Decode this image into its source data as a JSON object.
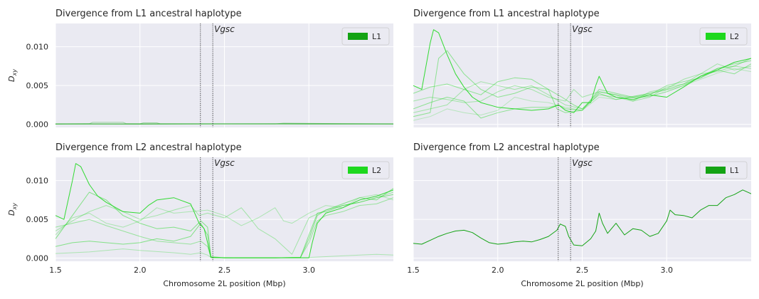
{
  "figure": {
    "xlabel": "Chromosome 2L position (Mbp)",
    "ylabel_main": "D",
    "ylabel_sub": "xy",
    "annotation": "Vgsc",
    "gene_region": [
      2.358,
      2.431
    ]
  },
  "chart_data": [
    {
      "type": "line",
      "title": "Divergence from L1 ancestral haplotype",
      "legend": {
        "label": "L1",
        "color": "#14a314",
        "position": "top-right"
      },
      "show_ylabel": true,
      "show_yticks": true,
      "show_xticks": false,
      "xlim": [
        1.5,
        3.5
      ],
      "ylim": [
        -0.0004,
        0.013
      ],
      "xticks": [
        1.5,
        2.0,
        2.5,
        3.0
      ],
      "xticklabels": [
        "1.5",
        "2.0",
        "2.5",
        "3.0"
      ],
      "yticks": [
        0.0,
        0.005,
        0.01
      ],
      "yticklabels": [
        "0.000",
        "0.005",
        "0.010"
      ],
      "series": [
        {
          "alpha": 0.35,
          "x": [
            1.5,
            1.7,
            1.72,
            1.9,
            1.92,
            2.5,
            3.0,
            3.5
          ],
          "y": [
            5e-05,
            8e-05,
            0.00025,
            0.00025,
            8e-05,
            6e-05,
            8e-05,
            6e-05
          ]
        },
        {
          "alpha": 0.35,
          "x": [
            1.5,
            2.0,
            2.02,
            2.1,
            2.12,
            2.8,
            2.85,
            3.2,
            3.5
          ],
          "y": [
            4e-05,
            6e-05,
            0.0002,
            0.0002,
            6e-05,
            5e-05,
            0.00015,
            8e-05,
            5e-05
          ]
        },
        {
          "alpha": 0.9,
          "x": [
            1.5,
            2.0,
            2.5,
            3.0,
            3.5
          ],
          "y": [
            5e-05,
            4e-05,
            6e-05,
            5e-05,
            5e-05
          ]
        }
      ]
    },
    {
      "type": "line",
      "title": "Divergence from L1 ancestral haplotype",
      "legend": {
        "label": "L2",
        "color": "#1ed81e",
        "position": "top-right"
      },
      "show_ylabel": false,
      "show_yticks": false,
      "show_xticks": false,
      "xlim": [
        1.5,
        3.5
      ],
      "ylim": [
        -0.0004,
        0.013
      ],
      "xticks": [
        1.5,
        2.0,
        2.5,
        3.0
      ],
      "xticklabels": [
        "1.5",
        "2.0",
        "2.5",
        "3.0"
      ],
      "yticks": [
        0.0,
        0.005,
        0.01
      ],
      "yticklabels": [
        "0.000",
        "0.005",
        "0.010"
      ],
      "series": [
        {
          "alpha": 0.9,
          "x": [
            1.5,
            1.55,
            1.6,
            1.62,
            1.65,
            1.7,
            1.75,
            1.8,
            1.85,
            1.9,
            2.0,
            2.1,
            2.2,
            2.3,
            2.36,
            2.4,
            2.45,
            2.5,
            2.55,
            2.58,
            2.6,
            2.65,
            2.7,
            2.8,
            2.9,
            3.0,
            3.1,
            3.2,
            3.3,
            3.4,
            3.5
          ],
          "y": [
            0.005,
            0.0045,
            0.0105,
            0.0122,
            0.0118,
            0.009,
            0.0065,
            0.0048,
            0.0035,
            0.0028,
            0.0022,
            0.002,
            0.0018,
            0.002,
            0.0025,
            0.0018,
            0.0015,
            0.0028,
            0.0028,
            0.005,
            0.0062,
            0.004,
            0.0035,
            0.0032,
            0.0038,
            0.0035,
            0.0048,
            0.0062,
            0.007,
            0.008,
            0.0085
          ]
        },
        {
          "alpha": 0.45,
          "x": [
            1.5,
            1.6,
            1.7,
            1.8,
            1.9,
            2.0,
            2.1,
            2.2,
            2.3,
            2.35,
            2.4,
            2.5,
            2.6,
            2.7,
            2.8,
            2.9,
            3.0,
            3.1,
            3.2,
            3.3,
            3.4,
            3.5
          ],
          "y": [
            0.004,
            0.0048,
            0.0052,
            0.0045,
            0.0038,
            0.0055,
            0.006,
            0.0058,
            0.0045,
            0.002,
            0.0015,
            0.0018,
            0.004,
            0.0032,
            0.0036,
            0.004,
            0.0045,
            0.0052,
            0.006,
            0.0072,
            0.0075,
            0.0085
          ]
        },
        {
          "alpha": 0.45,
          "x": [
            1.5,
            1.6,
            1.7,
            1.8,
            1.9,
            2.0,
            2.1,
            2.2,
            2.3,
            2.36,
            2.4,
            2.5,
            2.6,
            2.7,
            2.8,
            2.9,
            3.0,
            3.1,
            3.2,
            3.3,
            3.4,
            3.5
          ],
          "y": [
            0.002,
            0.0028,
            0.0035,
            0.003,
            0.0008,
            0.0015,
            0.002,
            0.0022,
            0.0022,
            0.0025,
            0.002,
            0.0018,
            0.0045,
            0.004,
            0.0035,
            0.0038,
            0.005,
            0.0055,
            0.006,
            0.007,
            0.0065,
            0.0078
          ]
        },
        {
          "alpha": 0.45,
          "x": [
            1.5,
            1.6,
            1.65,
            1.7,
            1.8,
            1.9,
            2.0,
            2.1,
            2.2,
            2.3,
            2.38,
            2.45,
            2.5,
            2.6,
            2.7,
            2.8,
            2.9,
            3.0,
            3.1,
            3.2,
            3.3,
            3.4,
            3.5
          ],
          "y": [
            0.001,
            0.0015,
            0.0085,
            0.0095,
            0.0065,
            0.0045,
            0.0035,
            0.004,
            0.0048,
            0.0045,
            0.0035,
            0.0025,
            0.002,
            0.0042,
            0.0038,
            0.0034,
            0.0036,
            0.0042,
            0.005,
            0.0062,
            0.0072,
            0.0078,
            0.0082
          ]
        },
        {
          "alpha": 0.35,
          "x": [
            1.5,
            1.6,
            1.7,
            1.8,
            1.9,
            2.0,
            2.1,
            2.2,
            2.3,
            2.4,
            2.5,
            2.6,
            2.7,
            2.8,
            2.9,
            3.0,
            3.1,
            3.2,
            3.3,
            3.4,
            3.5
          ],
          "y": [
            0.0015,
            0.002,
            0.0025,
            0.0045,
            0.0055,
            0.005,
            0.0045,
            0.005,
            0.0038,
            0.0025,
            0.002,
            0.0038,
            0.0035,
            0.003,
            0.0035,
            0.0048,
            0.0052,
            0.0065,
            0.0068,
            0.0075,
            0.0072
          ]
        },
        {
          "alpha": 0.35,
          "x": [
            1.5,
            1.6,
            1.7,
            1.8,
            1.9,
            2.0,
            2.1,
            2.2,
            2.3,
            2.4,
            2.45,
            2.5,
            2.6,
            2.7,
            2.8,
            2.9,
            3.0,
            3.1,
            3.2,
            3.3,
            3.4,
            3.5
          ],
          "y": [
            0.003,
            0.0035,
            0.0032,
            0.0028,
            0.003,
            0.0042,
            0.005,
            0.0045,
            0.0035,
            0.003,
            0.0045,
            0.0035,
            0.0042,
            0.0038,
            0.003,
            0.0042,
            0.0046,
            0.0058,
            0.0065,
            0.0078,
            0.007,
            0.0075
          ]
        },
        {
          "alpha": 0.25,
          "x": [
            1.5,
            1.6,
            1.7,
            1.8,
            1.9,
            2.0,
            2.1,
            2.2,
            2.3,
            2.4,
            2.5,
            2.6,
            2.7,
            2.8,
            2.9,
            3.0,
            3.1,
            3.2,
            3.3,
            3.4,
            3.5
          ],
          "y": [
            0.0005,
            0.001,
            0.002,
            0.0015,
            0.0012,
            0.0018,
            0.0035,
            0.003,
            0.0028,
            0.0022,
            0.0018,
            0.0035,
            0.0032,
            0.0035,
            0.004,
            0.0044,
            0.005,
            0.0058,
            0.0066,
            0.0072,
            0.0068
          ]
        }
      ]
    },
    {
      "type": "line",
      "title": "Divergence from L2 ancestral haplotype",
      "legend": {
        "label": "L2",
        "color": "#1ed81e",
        "position": "top-right"
      },
      "show_ylabel": true,
      "show_yticks": true,
      "show_xticks": true,
      "xlim": [
        1.5,
        3.5
      ],
      "ylim": [
        -0.0004,
        0.013
      ],
      "xticks": [
        1.5,
        2.0,
        2.5,
        3.0
      ],
      "xticklabels": [
        "1.5",
        "2.0",
        "2.5",
        "3.0"
      ],
      "yticks": [
        0.0,
        0.005,
        0.01
      ],
      "yticklabels": [
        "0.000",
        "0.005",
        "0.010"
      ],
      "series": [
        {
          "alpha": 0.9,
          "x": [
            1.5,
            1.55,
            1.6,
            1.62,
            1.65,
            1.7,
            1.75,
            1.8,
            1.9,
            2.0,
            2.05,
            2.1,
            2.2,
            2.3,
            2.35,
            2.38,
            2.4,
            2.42,
            2.5,
            2.8,
            3.0,
            3.02,
            3.05,
            3.1,
            3.2,
            3.3,
            3.4,
            3.5
          ],
          "y": [
            0.0055,
            0.005,
            0.01,
            0.0122,
            0.0118,
            0.0095,
            0.008,
            0.0072,
            0.006,
            0.0058,
            0.0068,
            0.0075,
            0.0078,
            0.007,
            0.0045,
            0.0038,
            0.002,
            0.0001,
            5e-05,
            5e-05,
            5e-05,
            0.002,
            0.0045,
            0.0058,
            0.0065,
            0.0075,
            0.008,
            0.0088
          ]
        },
        {
          "alpha": 0.5,
          "x": [
            1.5,
            1.6,
            1.7,
            1.8,
            1.9,
            2.0,
            2.1,
            2.2,
            2.3,
            2.36,
            2.4,
            2.42,
            2.5,
            2.8,
            2.95,
            3.0,
            3.05,
            3.1,
            3.2,
            3.3,
            3.4,
            3.5
          ],
          "y": [
            0.0025,
            0.0055,
            0.0085,
            0.0075,
            0.0055,
            0.0045,
            0.0038,
            0.004,
            0.0035,
            0.0048,
            0.004,
            0.0002,
            5e-05,
            5e-05,
            0.0001,
            0.003,
            0.0058,
            0.006,
            0.0068,
            0.0072,
            0.0078,
            0.0082
          ]
        },
        {
          "alpha": 0.5,
          "x": [
            1.5,
            1.6,
            1.7,
            1.8,
            1.9,
            2.0,
            2.1,
            2.2,
            2.3,
            2.36,
            2.4,
            2.42,
            2.5,
            2.8,
            2.95,
            3.0,
            3.05,
            3.1,
            3.2,
            3.3,
            3.4,
            3.5
          ],
          "y": [
            0.0015,
            0.002,
            0.0022,
            0.002,
            0.0018,
            0.002,
            0.0025,
            0.0022,
            0.0028,
            0.0045,
            0.003,
            0.0001,
            5e-05,
            5e-05,
            0.0001,
            0.0025,
            0.0055,
            0.0062,
            0.007,
            0.0078,
            0.0075,
            0.009
          ]
        },
        {
          "alpha": 0.4,
          "x": [
            1.5,
            1.6,
            1.7,
            1.8,
            1.9,
            2.0,
            2.1,
            2.2,
            2.3,
            2.36,
            2.4,
            2.42,
            2.5,
            2.8,
            2.95,
            3.0,
            3.05,
            3.1,
            3.2,
            3.3,
            3.4,
            3.5
          ],
          "y": [
            0.004,
            0.0045,
            0.005,
            0.0042,
            0.0035,
            0.0028,
            0.0022,
            0.002,
            0.0018,
            0.0022,
            0.0015,
            0.0001,
            5e-05,
            5e-05,
            0.0001,
            0.002,
            0.0048,
            0.0055,
            0.006,
            0.0068,
            0.007,
            0.0078
          ]
        },
        {
          "alpha": 0.35,
          "x": [
            1.5,
            1.6,
            1.7,
            1.8,
            1.9,
            2.0,
            2.1,
            2.2,
            2.3,
            2.35,
            2.4,
            2.5,
            2.6,
            2.65,
            2.7,
            2.8,
            2.9,
            3.0,
            3.1,
            3.2,
            3.3,
            3.4,
            3.5
          ],
          "y": [
            0.0035,
            0.0048,
            0.006,
            0.0068,
            0.006,
            0.005,
            0.0055,
            0.0062,
            0.0068,
            0.0055,
            0.0058,
            0.0052,
            0.0065,
            0.0052,
            0.0038,
            0.0025,
            0.0005,
            0.0052,
            0.0062,
            0.0068,
            0.0072,
            0.0078,
            0.0085
          ]
        },
        {
          "alpha": 0.3,
          "x": [
            1.5,
            1.6,
            1.7,
            1.8,
            1.9,
            2.0,
            2.1,
            2.2,
            2.3,
            2.4,
            2.5,
            2.6,
            2.7,
            2.8,
            2.85,
            2.9,
            3.0,
            3.1,
            3.2,
            3.3,
            3.4,
            3.5
          ],
          "y": [
            0.003,
            0.0052,
            0.0058,
            0.0045,
            0.004,
            0.0048,
            0.0065,
            0.0058,
            0.006,
            0.0062,
            0.0055,
            0.0042,
            0.0052,
            0.0065,
            0.0048,
            0.0045,
            0.0058,
            0.0068,
            0.0065,
            0.0078,
            0.0082,
            0.0075
          ]
        },
        {
          "alpha": 0.3,
          "x": [
            1.5,
            1.7,
            1.9,
            2.0,
            2.2,
            2.3,
            2.36,
            2.4,
            2.42,
            2.6,
            2.8,
            3.0,
            3.2,
            3.4,
            3.5
          ],
          "y": [
            0.0006,
            0.0008,
            0.0012,
            0.001,
            0.0007,
            0.0005,
            0.0007,
            0.0004,
            0.0001,
            5e-05,
            5e-05,
            0.0001,
            0.0003,
            0.0005,
            0.0004
          ]
        }
      ]
    },
    {
      "type": "line",
      "title": "Divergence from L2 ancestral haplotype",
      "legend": {
        "label": "L1",
        "color": "#14a314",
        "position": "top-right"
      },
      "show_ylabel": false,
      "show_yticks": false,
      "show_xticks": true,
      "xlim": [
        1.5,
        3.5
      ],
      "ylim": [
        -0.0004,
        0.013
      ],
      "xticks": [
        1.5,
        2.0,
        2.5,
        3.0
      ],
      "xticklabels": [
        "1.5",
        "2.0",
        "2.5",
        "3.0"
      ],
      "yticks": [
        0.0,
        0.005,
        0.01
      ],
      "yticklabels": [
        "0.000",
        "0.005",
        "0.010"
      ],
      "series": [
        {
          "alpha": 1.0,
          "x": [
            1.5,
            1.55,
            1.6,
            1.65,
            1.7,
            1.75,
            1.8,
            1.85,
            1.9,
            1.95,
            2.0,
            2.05,
            2.1,
            2.15,
            2.2,
            2.25,
            2.3,
            2.35,
            2.37,
            2.4,
            2.42,
            2.45,
            2.5,
            2.55,
            2.58,
            2.6,
            2.62,
            2.65,
            2.7,
            2.75,
            2.8,
            2.85,
            2.9,
            2.95,
            3.0,
            3.02,
            3.05,
            3.1,
            3.15,
            3.2,
            3.25,
            3.3,
            3.35,
            3.4,
            3.45,
            3.5
          ],
          "y": [
            0.0019,
            0.0018,
            0.0023,
            0.0028,
            0.0032,
            0.0035,
            0.0036,
            0.0033,
            0.0026,
            0.002,
            0.0018,
            0.0019,
            0.0021,
            0.0022,
            0.0021,
            0.0024,
            0.0028,
            0.0036,
            0.0044,
            0.0041,
            0.0028,
            0.0017,
            0.0016,
            0.0025,
            0.0035,
            0.0058,
            0.0045,
            0.0032,
            0.0045,
            0.003,
            0.0038,
            0.0036,
            0.0028,
            0.0032,
            0.0048,
            0.0062,
            0.0056,
            0.0055,
            0.0052,
            0.0062,
            0.0068,
            0.0068,
            0.0078,
            0.0082,
            0.0088,
            0.0083
          ]
        }
      ]
    }
  ]
}
